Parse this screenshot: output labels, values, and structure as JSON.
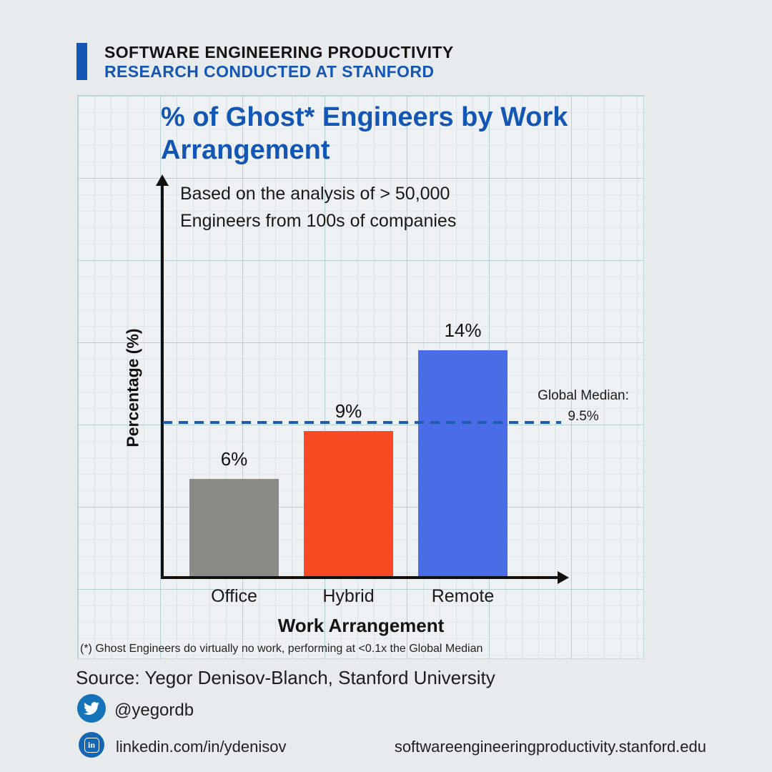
{
  "page": {
    "background": "#e7ebee",
    "accent_color": "#1356b4"
  },
  "header": {
    "line1": "SOFTWARE ENGINEERING PRODUCTIVITY",
    "line2": "RESEARCH CONDUCTED AT STANFORD"
  },
  "chart_data": {
    "type": "bar",
    "title": "% of Ghost* Engineers by Work Arrangement",
    "subtitle": "Based on the analysis of > 50,000 Engineers from 100s of companies",
    "categories": [
      "Office",
      "Hybrid",
      "Remote"
    ],
    "values": [
      6,
      9,
      14
    ],
    "value_labels": [
      "6%",
      "9%",
      "14%"
    ],
    "bar_colors": [
      "#8c8a86",
      "#fa4a23",
      "#4a6ce6"
    ],
    "xlabel": "Work Arrangement",
    "ylabel": "Percentage (%)",
    "ylim": [
      0,
      16
    ],
    "grid": true,
    "legend": "none",
    "reference_line": {
      "value": 9.5,
      "style": "dashed",
      "color": "#1e5dad",
      "label_line1": "Global Median:",
      "label_line2": "9.5%"
    },
    "footnote": "(*) Ghost Engineers do virtually no work, performing at <0.1x the Global Median",
    "title_color": "#1356b4"
  },
  "footer": {
    "source": "Source: Yegor Denisov-Blanch, Stanford University",
    "twitter_handle": "@yegordb",
    "linkedin_url": "linkedin.com/in/ydenisov",
    "website": "softwareengineeringproductivity.stanford.edu",
    "twitter_color": "#1573b9",
    "linkedin_color": "#1566b2"
  }
}
